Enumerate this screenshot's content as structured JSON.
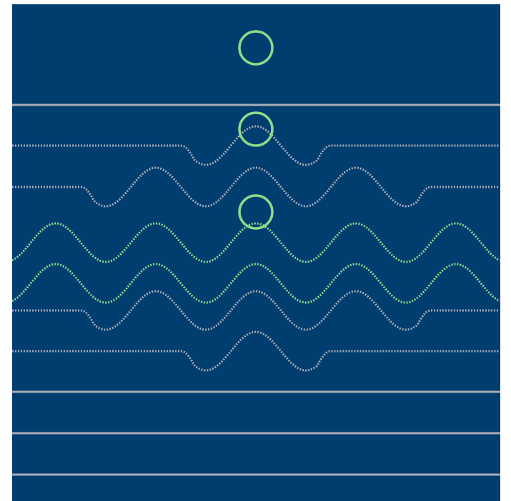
{
  "colors": {
    "page_background": "#ffffff",
    "panel": "#013e70",
    "solid_line": "#a9acb6",
    "gray_wave": "#a7aab5",
    "green_wave": "#8fd98a",
    "ring": "#8fd98a"
  },
  "diagram": {
    "solid_line_count": 4,
    "dotted_wave_count": 6,
    "ring_count": 3,
    "ring_icon": "circle-outline-icon",
    "wave_styles": [
      "gray",
      "gray",
      "green",
      "green",
      "gray",
      "gray"
    ]
  }
}
